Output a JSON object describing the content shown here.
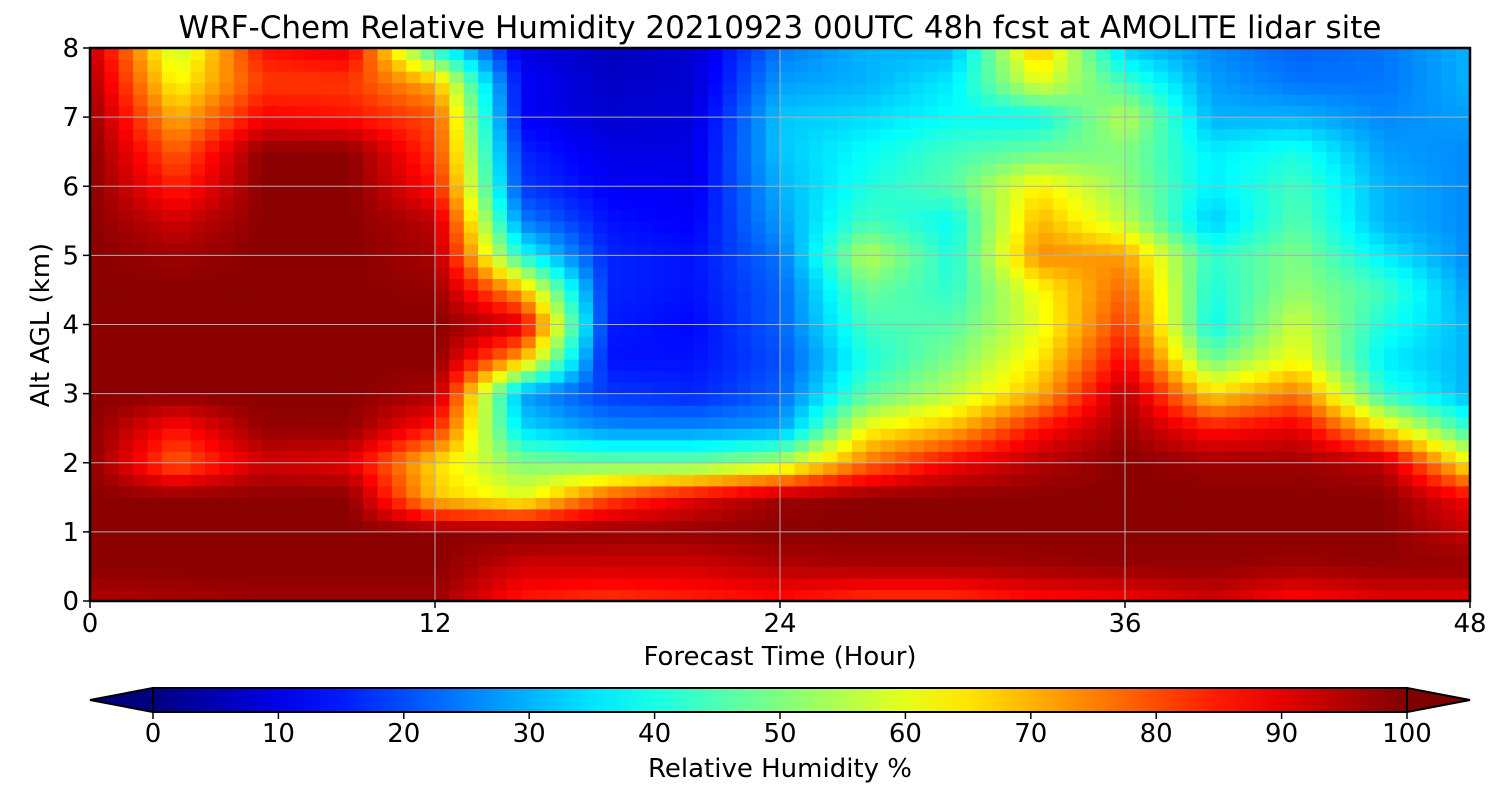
{
  "chart_data": {
    "type": "heatmap",
    "title": "WRF-Chem Relative Humidity 20210923 00UTC 48h fcst at AMOLITE lidar site",
    "xlabel": "Forecast Time (Hour)",
    "ylabel": "Alt AGL (km)",
    "xlim": [
      0,
      48
    ],
    "ylim": [
      0,
      8
    ],
    "xticks": [
      "0",
      "12",
      "24",
      "36",
      "48"
    ],
    "yticks": [
      "0",
      "1",
      "2",
      "3",
      "4",
      "5",
      "6",
      "7",
      "8"
    ],
    "grid": true,
    "colorbar": {
      "label": "Relative Humidity %",
      "ticks": [
        "0",
        "10",
        "20",
        "30",
        "40",
        "50",
        "60",
        "70",
        "80",
        "90",
        "100"
      ],
      "range": [
        0,
        100
      ],
      "colormap": "jet",
      "extend": "both"
    },
    "x": [
      0,
      3,
      6,
      9,
      12,
      15,
      18,
      21,
      24,
      27,
      30,
      33,
      36,
      39,
      42,
      45,
      48
    ],
    "y": [
      0,
      0.5,
      1,
      1.5,
      2,
      2.5,
      3,
      3.5,
      4,
      4.5,
      5,
      5.5,
      6,
      6.5,
      7,
      7.5,
      8
    ],
    "z": [
      [
        95,
        96,
        97,
        97,
        97,
        85,
        82,
        84,
        86,
        82,
        82,
        86,
        88,
        92,
        86,
        90,
        90
      ],
      [
        99,
        99,
        99,
        99,
        99,
        92,
        92,
        92,
        95,
        96,
        96,
        97,
        98,
        98,
        97,
        98,
        98
      ],
      [
        99,
        99,
        99,
        99,
        99,
        99,
        98,
        98,
        99,
        99,
        99,
        99,
        99,
        99,
        99,
        99,
        93
      ],
      [
        99,
        99,
        99,
        99,
        68,
        60,
        80,
        90,
        97,
        99,
        99,
        99,
        99,
        99,
        99,
        99,
        88
      ],
      [
        99,
        78,
        92,
        90,
        66,
        50,
        48,
        48,
        55,
        76,
        88,
        95,
        99,
        97,
        97,
        94,
        62
      ],
      [
        99,
        86,
        98,
        98,
        85,
        34,
        26,
        26,
        28,
        62,
        70,
        86,
        97,
        86,
        90,
        66,
        42
      ],
      [
        99,
        99,
        99,
        99,
        96,
        28,
        18,
        16,
        22,
        46,
        56,
        70,
        95,
        66,
        76,
        42,
        30
      ],
      [
        99,
        99,
        99,
        99,
        99,
        70,
        14,
        14,
        20,
        40,
        50,
        64,
        88,
        48,
        62,
        36,
        30
      ],
      [
        99,
        99,
        99,
        99,
        99,
        92,
        15,
        13,
        22,
        44,
        46,
        60,
        82,
        38,
        58,
        40,
        30
      ],
      [
        99,
        99,
        99,
        99,
        98,
        70,
        16,
        14,
        22,
        48,
        42,
        62,
        78,
        40,
        52,
        44,
        28
      ],
      [
        99,
        97,
        99,
        99,
        96,
        40,
        16,
        14,
        24,
        56,
        40,
        74,
        72,
        42,
        50,
        36,
        26
      ],
      [
        99,
        92,
        99,
        99,
        94,
        25,
        14,
        12,
        28,
        44,
        38,
        70,
        56,
        32,
        46,
        30,
        26
      ],
      [
        99,
        84,
        99,
        99,
        86,
        18,
        12,
        11,
        30,
        40,
        46,
        64,
        52,
        36,
        44,
        30,
        26
      ],
      [
        99,
        78,
        99,
        99,
        82,
        16,
        10,
        10,
        32,
        38,
        44,
        48,
        50,
        36,
        40,
        28,
        26
      ],
      [
        98,
        70,
        88,
        86,
        80,
        12,
        8,
        9,
        32,
        34,
        38,
        38,
        56,
        30,
        30,
        26,
        28
      ],
      [
        96,
        62,
        82,
        82,
        70,
        12,
        7,
        8,
        28,
        30,
        36,
        60,
        44,
        28,
        24,
        24,
        30
      ],
      [
        94,
        56,
        86,
        90,
        40,
        10,
        6,
        8,
        24,
        30,
        30,
        70,
        32,
        26,
        22,
        24,
        30
      ]
    ]
  }
}
